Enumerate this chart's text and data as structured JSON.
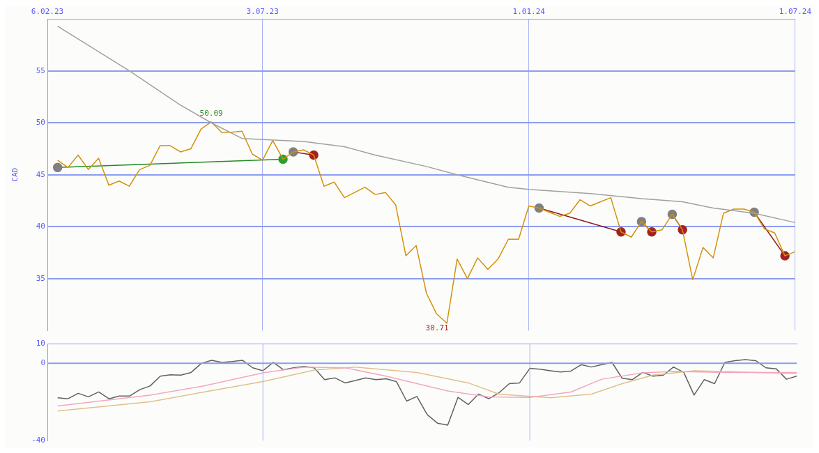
{
  "chart_data": [
    {
      "type": "line",
      "ylabel": "CAD",
      "annotations": [
        {
          "text": "50.09",
          "x": "2023-05-29",
          "y": 50.09
        },
        {
          "text": "30.71",
          "x": "2023-11-06",
          "y": 30.71
        }
      ],
      "x": [
        "2023-02-13",
        "2023-02-20",
        "2023-02-27",
        "2023-03-06",
        "2023-03-13",
        "2023-03-20",
        "2023-03-27",
        "2023-04-03",
        "2023-04-10",
        "2023-04-17",
        "2023-04-24",
        "2023-05-01",
        "2023-05-08",
        "2023-05-15",
        "2023-05-22",
        "2023-05-29",
        "2023-06-05",
        "2023-06-12",
        "2023-06-19",
        "2023-06-26",
        "2023-07-03",
        "2023-07-10",
        "2023-07-17",
        "2023-07-24",
        "2023-07-31",
        "2023-08-07",
        "2023-08-14",
        "2023-08-21",
        "2023-08-28",
        "2023-09-04",
        "2023-09-11",
        "2023-09-18",
        "2023-09-25",
        "2023-10-02",
        "2023-10-09",
        "2023-10-16",
        "2023-10-23",
        "2023-10-30",
        "2023-11-06",
        "2023-11-13",
        "2023-11-20",
        "2023-11-27",
        "2023-12-04",
        "2023-12-11",
        "2023-12-18",
        "2023-12-25",
        "2024-01-01",
        "2024-01-08",
        "2024-01-15",
        "2024-01-22",
        "2024-01-29",
        "2024-02-05",
        "2024-02-12",
        "2024-02-19",
        "2024-02-26",
        "2024-03-04",
        "2024-03-11",
        "2024-03-18",
        "2024-03-25",
        "2024-04-01",
        "2024-04-08",
        "2024-04-15",
        "2024-04-22",
        "2024-04-29",
        "2024-05-06",
        "2024-05-13",
        "2024-05-20",
        "2024-05-27",
        "2024-06-03",
        "2024-06-10",
        "2024-06-17",
        "2024-06-24",
        "2024-07-01"
      ],
      "series": [
        {
          "color": "#a0a0a0",
          "x": [
            "2023-02-13",
            "2023-04-03",
            "2023-05-08",
            "2023-05-29",
            "2023-06-19",
            "2023-07-31",
            "2023-08-28",
            "2023-09-18",
            "2023-10-23",
            "2023-11-13",
            "2023-12-18",
            "2024-01-01",
            "2024-02-12",
            "2024-03-18",
            "2024-04-15",
            "2024-05-06",
            "2024-06-03",
            "2024-07-01"
          ],
          "values": [
            59.3,
            55.0,
            51.7,
            50.0,
            48.5,
            48.2,
            47.7,
            46.9,
            45.8,
            45.0,
            43.8,
            43.6,
            43.2,
            42.7,
            42.4,
            41.8,
            41.3,
            40.4
          ]
        },
        {
          "color": "#d4900a",
          "values": [
            46.4,
            45.7,
            46.9,
            45.5,
            46.6,
            44.0,
            44.4,
            43.9,
            45.5,
            45.9,
            47.8,
            47.8,
            47.2,
            47.5,
            49.4,
            50.09,
            49.1,
            49.1,
            49.2,
            47.0,
            46.4,
            48.3,
            46.5,
            47.2,
            47.4,
            46.9,
            43.9,
            44.3,
            42.8,
            43.3,
            43.8,
            43.1,
            43.3,
            42.1,
            37.2,
            38.2,
            33.6,
            31.6,
            30.71,
            36.9,
            35.0,
            37.0,
            35.9,
            36.9,
            38.8,
            38.8,
            42.0,
            41.8,
            41.4,
            41.0,
            41.3,
            42.6,
            42.0,
            42.4,
            42.8,
            39.5,
            39.0,
            40.5,
            39.5,
            39.7,
            41.2,
            39.7,
            34.9,
            38.0,
            37.0,
            41.3,
            41.7,
            41.7,
            41.4,
            39.8,
            39.4,
            37.2,
            37.6
          ]
        },
        {
          "color": "#228b22",
          "marker": "circle",
          "colors": [
            "#808080",
            "#2e9e2e"
          ],
          "x": [
            "2023-02-13",
            "2023-07-17"
          ],
          "values": [
            45.7,
            46.5
          ]
        },
        {
          "color": "#8b1a1a",
          "marker": "circle",
          "colors": [
            "#808080",
            "#a52020"
          ],
          "x": [
            "2023-07-24",
            "2023-08-07"
          ],
          "values": [
            47.2,
            46.9
          ]
        },
        {
          "color": "#8b1a1a",
          "marker": "circle",
          "colors": [
            "#808080",
            "#a52020"
          ],
          "x": [
            "2024-01-08",
            "2024-03-04"
          ],
          "values": [
            41.8,
            39.5
          ]
        },
        {
          "color": "#8b1a1a",
          "marker": "circle",
          "colors": [
            "#808080",
            "#a52020"
          ],
          "x": [
            "2024-03-18",
            "2024-03-25"
          ],
          "values": [
            40.5,
            39.5
          ]
        },
        {
          "color": "#8b1a1a",
          "marker": "circle",
          "colors": [
            "#808080",
            "#a52020"
          ],
          "x": [
            "2024-04-08",
            "2024-04-15"
          ],
          "values": [
            41.2,
            39.7
          ]
        },
        {
          "color": "#8b1a1a",
          "marker": "circle",
          "colors": [
            "#808080",
            "#a52020"
          ],
          "x": [
            "2024-06-03",
            "2024-06-24"
          ],
          "values": [
            41.4,
            37.2
          ]
        }
      ],
      "xlim": [
        "2023-02-06",
        "2024-07-01"
      ],
      "xticks": [
        {
          "value": "2023-02-06",
          "label": "6.02.23"
        },
        {
          "value": "2023-07-03",
          "label": "3.07.23"
        },
        {
          "value": "2024-01-01",
          "label": "1.01.24"
        },
        {
          "value": "2024-07-01",
          "label": "1.07.24"
        }
      ],
      "ylim": [
        30,
        60
      ],
      "yticks": [
        35,
        40,
        45,
        50,
        55
      ],
      "grid": true
    },
    {
      "type": "line",
      "tick_labels": "y",
      "x": [
        "2023-02-13",
        "2023-02-20",
        "2023-02-27",
        "2023-03-06",
        "2023-03-13",
        "2023-03-20",
        "2023-03-27",
        "2023-04-03",
        "2023-04-10",
        "2023-04-17",
        "2023-04-24",
        "2023-05-01",
        "2023-05-08",
        "2023-05-15",
        "2023-05-22",
        "2023-05-29",
        "2023-06-05",
        "2023-06-12",
        "2023-06-19",
        "2023-06-26",
        "2023-07-03",
        "2023-07-10",
        "2023-07-17",
        "2023-07-24",
        "2023-07-31",
        "2023-08-07",
        "2023-08-14",
        "2023-08-21",
        "2023-08-28",
        "2023-09-04",
        "2023-09-11",
        "2023-09-18",
        "2023-09-25",
        "2023-10-02",
        "2023-10-09",
        "2023-10-16",
        "2023-10-23",
        "2023-10-30",
        "2023-11-06",
        "2023-11-13",
        "2023-11-20",
        "2023-11-27",
        "2023-12-04",
        "2023-12-11",
        "2023-12-18",
        "2023-12-25",
        "2024-01-01",
        "2024-01-08",
        "2024-01-15",
        "2024-01-22",
        "2024-01-29",
        "2024-02-05",
        "2024-02-12",
        "2024-02-19",
        "2024-02-26",
        "2024-03-04",
        "2024-03-11",
        "2024-03-18",
        "2024-03-25",
        "2024-04-01",
        "2024-04-08",
        "2024-04-15",
        "2024-04-22",
        "2024-04-29",
        "2024-05-06",
        "2024-05-13",
        "2024-05-20",
        "2024-05-27",
        "2024-06-03",
        "2024-06-10",
        "2024-06-17",
        "2024-06-24",
        "2024-07-01"
      ],
      "series": [
        {
          "color": "#f4a6c0",
          "x": [
            "2023-02-13",
            "2023-04-17",
            "2023-05-22",
            "2023-07-03",
            "2023-07-31",
            "2023-08-28",
            "2023-09-25",
            "2023-11-06",
            "2023-12-04",
            "2024-01-01",
            "2024-01-29",
            "2024-02-19",
            "2024-03-18",
            "2024-04-08",
            "2024-05-13",
            "2024-07-01"
          ],
          "values": [
            -22.0,
            -16.4,
            -11.9,
            -4.9,
            -1.9,
            -2.3,
            -6.6,
            -14.3,
            -17.3,
            -17.6,
            -14.8,
            -8.2,
            -4.9,
            -4.2,
            -4.7,
            -4.7
          ]
        },
        {
          "color": "#e0c08a",
          "x": [
            "2023-02-13",
            "2023-04-17",
            "2023-05-29",
            "2023-07-03",
            "2023-08-07",
            "2023-09-04",
            "2023-10-16",
            "2023-11-20",
            "2023-12-11",
            "2024-01-15",
            "2024-02-12",
            "2024-03-04",
            "2024-03-25",
            "2024-04-22",
            "2024-05-13",
            "2024-07-01"
          ],
          "values": [
            -24.6,
            -19.9,
            -14.1,
            -9.4,
            -3.5,
            -1.9,
            -4.7,
            -10.1,
            -15.9,
            -17.8,
            -15.9,
            -10.5,
            -6.1,
            -3.8,
            -4.2,
            -5.4
          ]
        },
        {
          "color": "#606060",
          "values": [
            -17.8,
            -18.3,
            -15.5,
            -17.3,
            -14.8,
            -18.3,
            -16.9,
            -16.9,
            -13.6,
            -11.7,
            -6.6,
            -5.9,
            -6.1,
            -4.7,
            0,
            1.6,
            0.5,
            0.9,
            1.6,
            -2.3,
            -3.8,
            0.5,
            -3.3,
            -2.3,
            -1.6,
            -2.3,
            -8.4,
            -7.5,
            -10.1,
            -8.9,
            -7.5,
            -8.4,
            -8.0,
            -9.4,
            -19.5,
            -17.1,
            -26.5,
            -30.9,
            -31.9,
            -17.6,
            -21.3,
            -15.9,
            -18.3,
            -15.2,
            -10.5,
            -10.1,
            -2.6,
            -3.0,
            -3.8,
            -4.5,
            -4.0,
            -0.7,
            -1.9,
            -0.7,
            0.5,
            -7.7,
            -8.4,
            -4.7,
            -6.6,
            -6.1,
            -1.9,
            -4.7,
            -16.4,
            -8.4,
            -10.5,
            0.5,
            1.4,
            1.9,
            1.4,
            -2.3,
            -2.8,
            -8.2,
            -6.6
          ]
        }
      ],
      "xlim": [
        "2023-02-06",
        "2024-07-01"
      ],
      "ref_lines": [
        {
          "axis": "x",
          "value": "2023-07-03",
          "color": "#a8b4f8"
        },
        {
          "axis": "x",
          "value": "2024-01-01",
          "color": "#a8b4f8"
        },
        {
          "axis": "y",
          "value": 0,
          "color": "#8c9cf0"
        }
      ],
      "ylim": [
        -40,
        10
      ],
      "yticks": [
        -40,
        0,
        10
      ]
    }
  ]
}
